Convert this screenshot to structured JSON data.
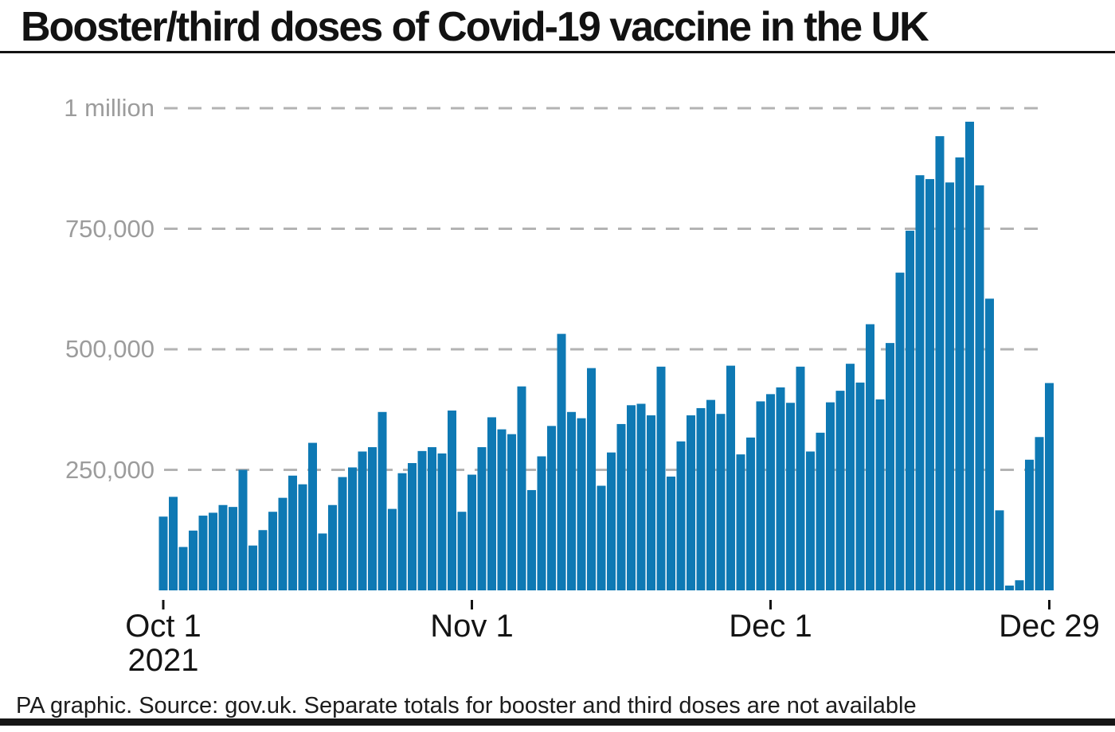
{
  "header": {
    "title": "Booster/third doses of Covid-19 vaccine in the UK"
  },
  "footer": {
    "credit": "PA graphic. Source: gov.uk. Separate totals for booster and third doses are not available"
  },
  "chart_data": {
    "type": "bar",
    "title": "Booster/third doses of Covid-19 vaccine in the UK",
    "xlabel": "",
    "ylabel": "",
    "ylim": [
      0,
      1050000
    ],
    "grid": "dashed-horizontal",
    "legend": "none",
    "colors": {
      "bar": "#0e79b4",
      "gridline": "#b3b3b3",
      "y_label": "#9c9c9c",
      "x_label": "#141414",
      "tick": "#141414"
    },
    "y_ticks": [
      {
        "label": "1 million",
        "value": 1000000
      },
      {
        "label": "750,000",
        "value": 750000
      },
      {
        "label": "500,000",
        "value": 500000
      },
      {
        "label": "250,000",
        "value": 250000
      }
    ],
    "x_ticks": [
      {
        "label": "Oct 1",
        "sublabel": "2021",
        "day_index": 0
      },
      {
        "label": "Nov 1",
        "sublabel": "",
        "day_index": 31
      },
      {
        "label": "Dec 1",
        "sublabel": "",
        "day_index": 61
      },
      {
        "label": "Dec 29",
        "sublabel": "",
        "day_index": 89
      }
    ],
    "categories": [
      "Oct 1",
      "Oct 2",
      "Oct 3",
      "Oct 4",
      "Oct 5",
      "Oct 6",
      "Oct 7",
      "Oct 8",
      "Oct 9",
      "Oct 10",
      "Oct 11",
      "Oct 12",
      "Oct 13",
      "Oct 14",
      "Oct 15",
      "Oct 16",
      "Oct 17",
      "Oct 18",
      "Oct 19",
      "Oct 20",
      "Oct 21",
      "Oct 22",
      "Oct 23",
      "Oct 24",
      "Oct 25",
      "Oct 26",
      "Oct 27",
      "Oct 28",
      "Oct 29",
      "Oct 30",
      "Oct 31",
      "Nov 1",
      "Nov 2",
      "Nov 3",
      "Nov 4",
      "Nov 5",
      "Nov 6",
      "Nov 7",
      "Nov 8",
      "Nov 9",
      "Nov 10",
      "Nov 11",
      "Nov 12",
      "Nov 13",
      "Nov 14",
      "Nov 15",
      "Nov 16",
      "Nov 17",
      "Nov 18",
      "Nov 19",
      "Nov 20",
      "Nov 21",
      "Nov 22",
      "Nov 23",
      "Nov 24",
      "Nov 25",
      "Nov 26",
      "Nov 27",
      "Nov 28",
      "Nov 29",
      "Nov 30",
      "Dec 1",
      "Dec 2",
      "Dec 3",
      "Dec 4",
      "Dec 5",
      "Dec 6",
      "Dec 7",
      "Dec 8",
      "Dec 9",
      "Dec 10",
      "Dec 11",
      "Dec 12",
      "Dec 13",
      "Dec 14",
      "Dec 15",
      "Dec 16",
      "Dec 17",
      "Dec 18",
      "Dec 19",
      "Dec 20",
      "Dec 21",
      "Dec 22",
      "Dec 23",
      "Dec 24",
      "Dec 25",
      "Dec 26",
      "Dec 27",
      "Dec 28",
      "Dec 29"
    ],
    "values": [
      153000,
      194000,
      90000,
      124000,
      155000,
      161000,
      177000,
      173000,
      250000,
      93000,
      125000,
      163000,
      192000,
      238000,
      220000,
      306000,
      118000,
      177000,
      235000,
      255000,
      288000,
      297000,
      370000,
      169000,
      243000,
      264000,
      289000,
      297000,
      284000,
      373000,
      163000,
      240000,
      297000,
      359000,
      334000,
      324000,
      423000,
      208000,
      278000,
      341000,
      532000,
      370000,
      357000,
      461000,
      217000,
      286000,
      345000,
      384000,
      387000,
      363000,
      464000,
      236000,
      309000,
      363000,
      378000,
      395000,
      366000,
      466000,
      282000,
      317000,
      392000,
      407000,
      421000,
      389000,
      464000,
      288000,
      327000,
      390000,
      414000,
      470000,
      431000,
      552000,
      396000,
      513000,
      659000,
      746000,
      861000,
      853000,
      942000,
      846000,
      898000,
      972000,
      840000,
      605000,
      166000,
      10000,
      21000,
      271000,
      318000,
      430000
    ]
  }
}
